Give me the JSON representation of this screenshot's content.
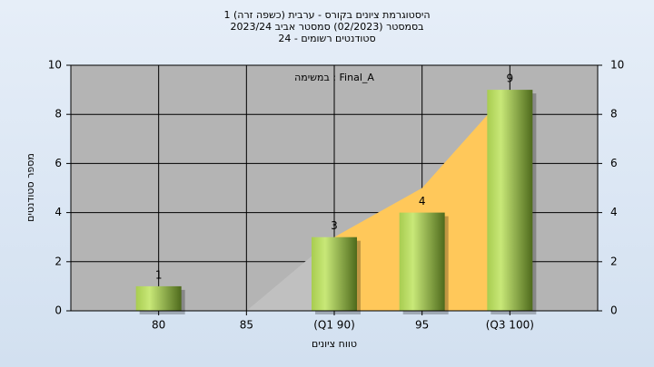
{
  "chart_data": {
    "type": "bar",
    "title": [
      "היסטוגרמת ציונים בקורס - ערבית (כשפה זרה) 1",
      "בסמסטר  (02/2023)  סמסטר אביב 2023/24",
      "סטודנטים רשומים - 24"
    ],
    "annotation": "במשימה : Final_A",
    "x_label": "טווח ציונים",
    "y_label": "מספר סטודנטים",
    "categories": [
      "80",
      "85",
      "(Q1 90)",
      "95",
      "(Q3 100)"
    ],
    "values": [
      1,
      0,
      3,
      4,
      9
    ],
    "value_labels": [
      "1",
      null,
      "3",
      "4",
      "9"
    ],
    "color": "#8cb43c",
    "areas": [
      {
        "color": "#c0c0c0",
        "values": [
          null,
          0,
          3,
          null,
          null
        ]
      },
      {
        "color": "#ffc85a",
        "values": [
          null,
          null,
          3,
          5,
          9
        ]
      }
    ],
    "ylim": [
      0,
      10
    ],
    "yticks": [
      0,
      2,
      4,
      6,
      8,
      10
    ],
    "y2lim": [
      0,
      10
    ],
    "y2ticks": [
      0,
      2,
      4,
      6,
      8,
      10
    ],
    "grid": true
  }
}
